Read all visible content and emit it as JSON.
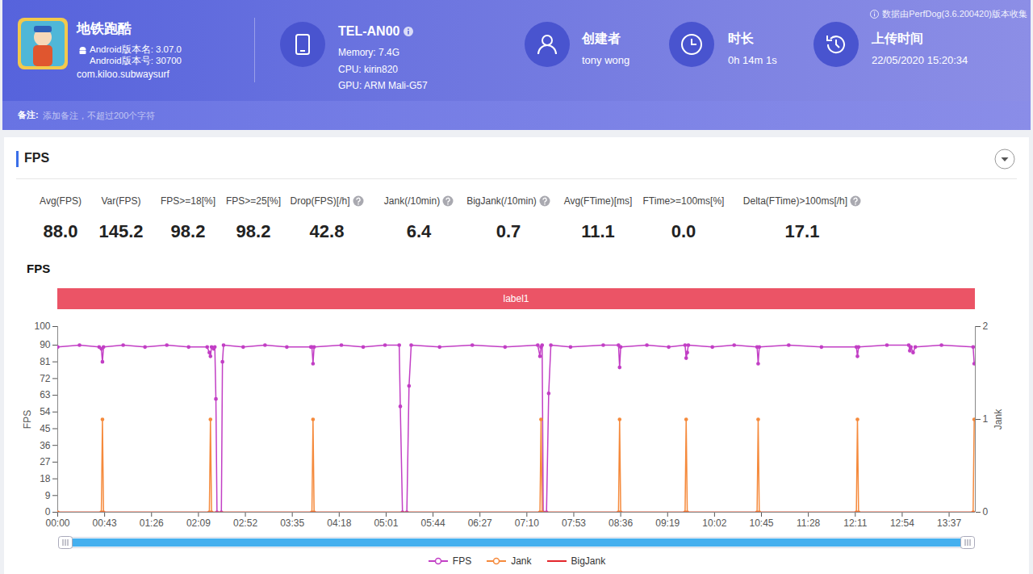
{
  "header": {
    "app_name": "地铁跑酷",
    "version_name": "Android版本名: 3.07.0",
    "version_code": "Android版本号: 30700",
    "package": "com.kiloo.subwaysurf",
    "device": "TEL-AN00",
    "memory": "Memory: 7.4G",
    "cpu": "CPU: kirin820",
    "gpu": "GPU: ARM Mali-G57",
    "creator_label": "创建者",
    "creator": "tony wong",
    "duration_label": "时长",
    "duration": "0h 14m 1s",
    "upload_label": "上传时间",
    "upload_time": "22/05/2020 15:20:34",
    "source_note": "数据由PerfDog(3.6.200420)版本收集",
    "remark_label": "备注:",
    "remark_placeholder": "添加备注，不超过200个字符"
  },
  "section_title": "FPS",
  "stats": [
    {
      "label": "Avg(FPS)",
      "value": "88.0",
      "help": false
    },
    {
      "label": "Var(FPS)",
      "value": "145.2",
      "help": false
    },
    {
      "label": "FPS>=18[%]",
      "value": "98.2",
      "help": false
    },
    {
      "label": "FPS>=25[%]",
      "value": "98.2",
      "help": false
    },
    {
      "label": "Drop(FPS)[/h]",
      "value": "42.8",
      "help": true
    },
    {
      "label": "Jank(/10min)",
      "value": "6.4",
      "help": true
    },
    {
      "label": "BigJank(/10min)",
      "value": "0.7",
      "help": true
    },
    {
      "label": "Avg(FTime)[ms]",
      "value": "11.1",
      "help": false
    },
    {
      "label": "FTime>=100ms[%]",
      "value": "0.0",
      "help": false
    },
    {
      "label": "Delta(FTime)>100ms[/h]",
      "value": "17.1",
      "help": true
    }
  ],
  "chart_data": {
    "type": "line",
    "title": "FPS",
    "band_label": "label1",
    "ylabel": "FPS",
    "y2label": "Jank",
    "xlim": [
      0,
      841
    ],
    "xticks": [
      {
        "value": 0,
        "label": "00:00"
      },
      {
        "value": 43,
        "label": "00:43"
      },
      {
        "value": 86,
        "label": "01:26"
      },
      {
        "value": 129,
        "label": "02:09"
      },
      {
        "value": 172,
        "label": "02:52"
      },
      {
        "value": 215,
        "label": "03:35"
      },
      {
        "value": 258,
        "label": "04:18"
      },
      {
        "value": 301,
        "label": "05:01"
      },
      {
        "value": 344,
        "label": "05:44"
      },
      {
        "value": 387,
        "label": "06:27"
      },
      {
        "value": 430,
        "label": "07:10"
      },
      {
        "value": 473,
        "label": "07:53"
      },
      {
        "value": 516,
        "label": "08:36"
      },
      {
        "value": 559,
        "label": "09:19"
      },
      {
        "value": 602,
        "label": "10:02"
      },
      {
        "value": 645,
        "label": "10:45"
      },
      {
        "value": 688,
        "label": "11:28"
      },
      {
        "value": 731,
        "label": "12:11"
      },
      {
        "value": 774,
        "label": "12:54"
      },
      {
        "value": 817,
        "label": "13:37"
      }
    ],
    "ylim": [
      0,
      100
    ],
    "yticks": [
      0,
      9,
      18,
      27,
      36,
      45,
      54,
      63,
      72,
      81,
      90,
      100
    ],
    "y2lim": [
      0,
      2
    ],
    "y2ticks": [
      0,
      1,
      2
    ],
    "grid": false,
    "legend": "bottom",
    "series": [
      {
        "name": "FPS",
        "color": "#c23fc5",
        "marker": "circle",
        "x": [
          0,
          20,
          38,
          40,
          41,
          42,
          60,
          80,
          100,
          120,
          137,
          139,
          140,
          141,
          143,
          144,
          145,
          146,
          150,
          151,
          152,
          170,
          190,
          210,
          232,
          233,
          234,
          235,
          260,
          280,
          300,
          313,
          314,
          316,
          320,
          322,
          324,
          350,
          380,
          410,
          440,
          442,
          443,
          444,
          445,
          448,
          450,
          452,
          470,
          500,
          514,
          515,
          516,
          540,
          560,
          575,
          576,
          577,
          578,
          600,
          620,
          641,
          642,
          643,
          670,
          700,
          732,
          733,
          734,
          760,
          780,
          781,
          782,
          784,
          786,
          810,
          839,
          840
        ],
        "values": [
          89,
          90,
          89,
          88,
          81,
          89,
          90,
          89,
          90,
          89,
          89,
          86,
          84,
          89,
          88,
          89,
          61,
          0,
          0,
          81,
          90,
          89,
          90,
          89,
          89,
          89,
          80,
          89,
          90,
          89,
          90,
          90,
          57,
          0,
          0,
          68,
          90,
          89,
          90,
          89,
          90,
          84,
          89,
          90,
          0,
          0,
          64,
          90,
          89,
          90,
          90,
          78,
          89,
          90,
          89,
          90,
          83,
          86,
          90,
          89,
          90,
          89,
          80,
          89,
          90,
          89,
          89,
          84,
          89,
          90,
          90,
          87,
          89,
          86,
          89,
          90,
          89,
          80
        ]
      },
      {
        "name": "Jank",
        "color": "#f58a3c",
        "marker": "circle",
        "axis": "y2",
        "x": [
          0,
          40,
          41,
          42,
          139,
          140,
          141,
          233,
          234,
          235,
          442,
          443,
          444,
          514,
          515,
          516,
          575,
          576,
          577,
          641,
          642,
          643,
          732,
          733,
          734,
          839,
          840
        ],
        "values": [
          0,
          0,
          1,
          0,
          0,
          1,
          0,
          0,
          1,
          0,
          0,
          1,
          0,
          0,
          1,
          0,
          0,
          1,
          0,
          0,
          1,
          0,
          0,
          1,
          0,
          0,
          1
        ]
      },
      {
        "name": "BigJank",
        "color": "#e3262c",
        "axis": "y2",
        "x": [
          0,
          841
        ],
        "values": [
          0,
          0
        ]
      }
    ]
  }
}
